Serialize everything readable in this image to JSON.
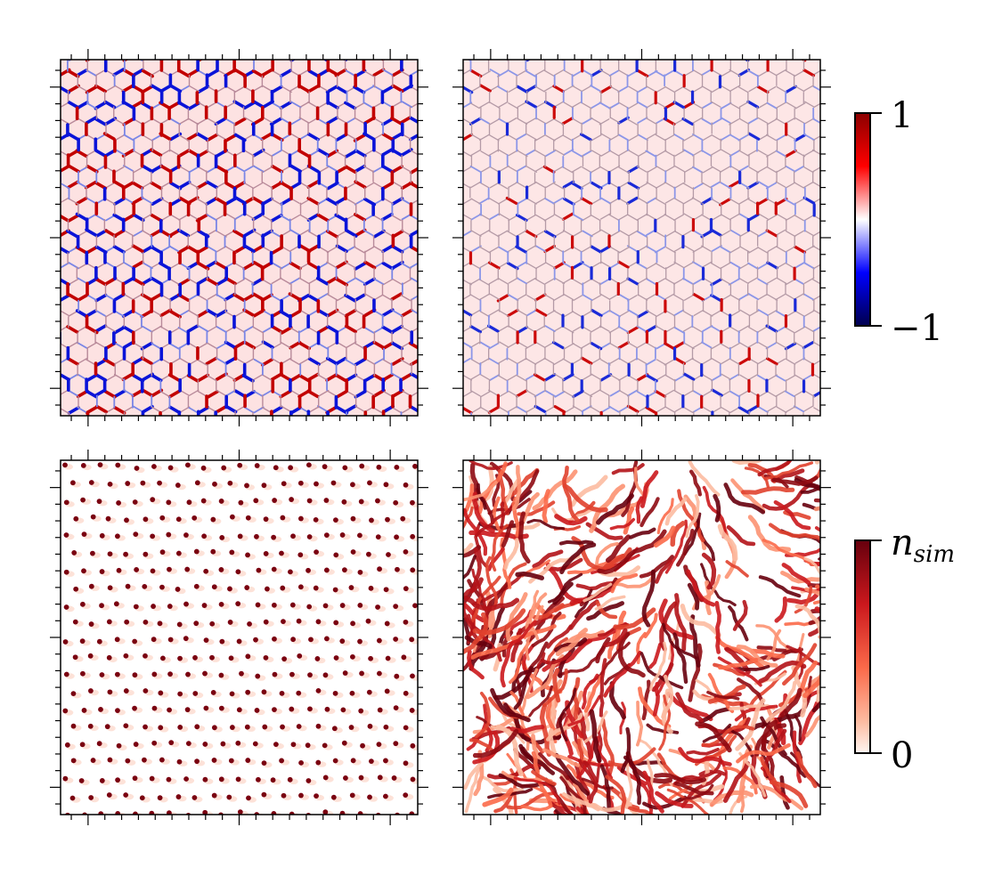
{
  "colorbars": {
    "top": {
      "max_label": "1",
      "min_label": "−1",
      "colors": [
        "#8b0000",
        "#ff0000",
        "#ffffff",
        "#0000ff",
        "#00004d"
      ]
    },
    "bottom": {
      "max_label": "n",
      "max_label_sub": "sim",
      "min_label": "0",
      "colors": [
        "#67000d",
        "#cb181d",
        "#fb6a4a",
        "#fcbba1",
        "#fff5f0"
      ]
    }
  },
  "panels": [
    {
      "pattern": "cellular-strong"
    },
    {
      "pattern": "cellular-weak"
    },
    {
      "pattern": "dots"
    },
    {
      "pattern": "streaks"
    }
  ]
}
